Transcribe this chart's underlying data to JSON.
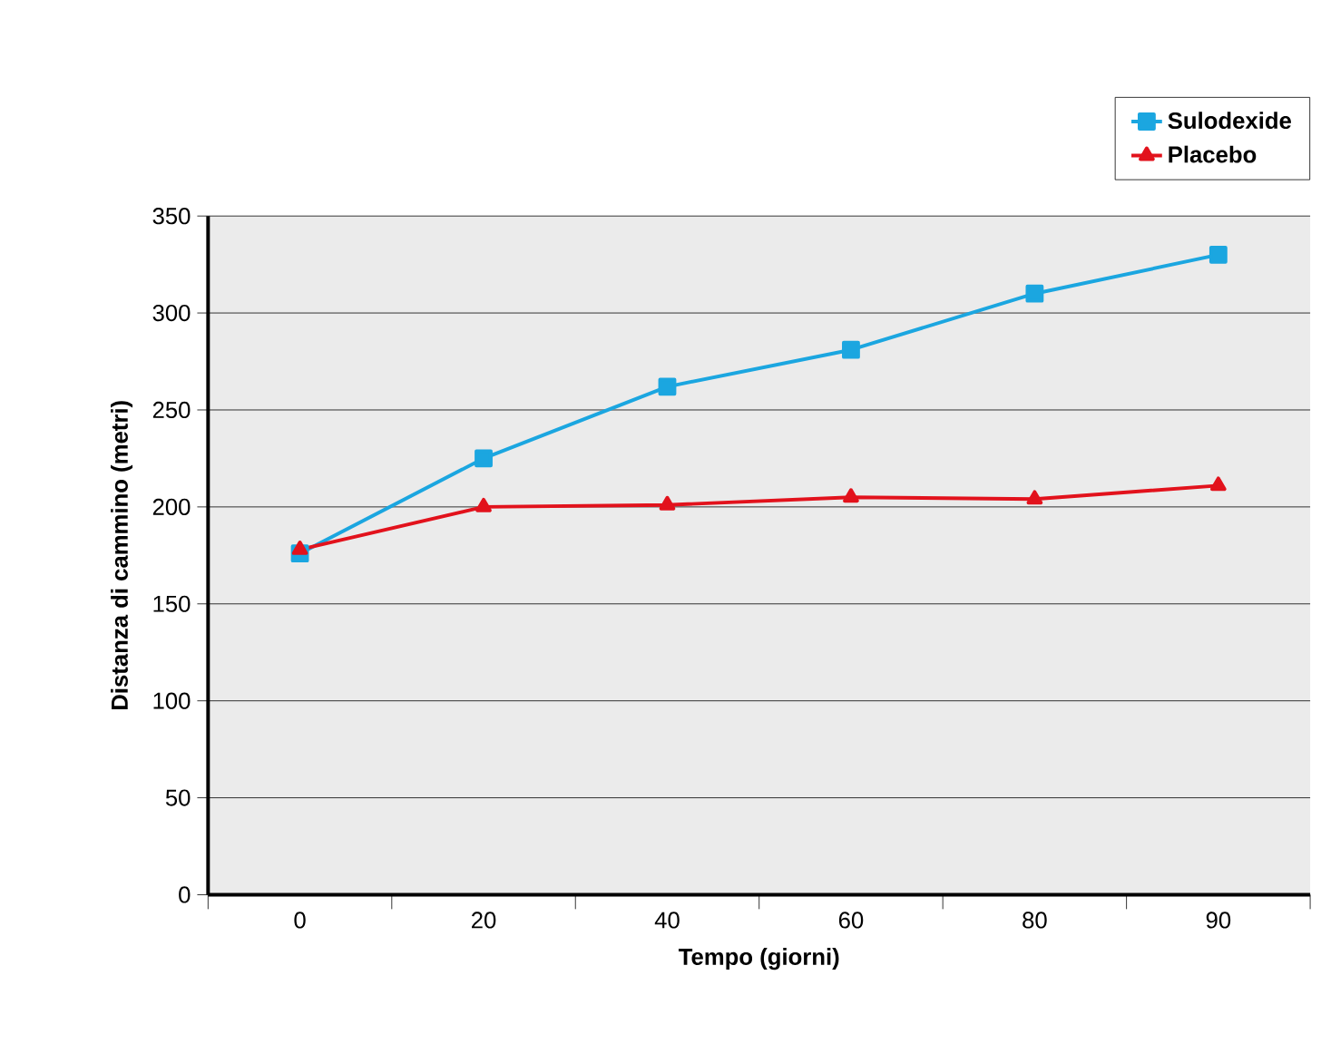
{
  "chart_data": {
    "type": "line",
    "xlabel": "Tempo (giorni)",
    "ylabel": "Distanza di cammino (metri)",
    "categories": [
      "0",
      "20",
      "40",
      "60",
      "80",
      "90"
    ],
    "series": [
      {
        "name": "Sulodexide",
        "color": "#1ba6e0",
        "marker": "square",
        "values": [
          176,
          225,
          262,
          281,
          310,
          330
        ]
      },
      {
        "name": "Placebo",
        "color": "#e2121c",
        "marker": "triangle",
        "values": [
          178,
          200,
          201,
          205,
          204,
          211
        ]
      }
    ],
    "ylim": [
      0,
      350
    ],
    "yticks": [
      0,
      50,
      100,
      150,
      200,
      250,
      300,
      350
    ],
    "grid": "y",
    "legend": "top right",
    "line_style": "solid"
  }
}
